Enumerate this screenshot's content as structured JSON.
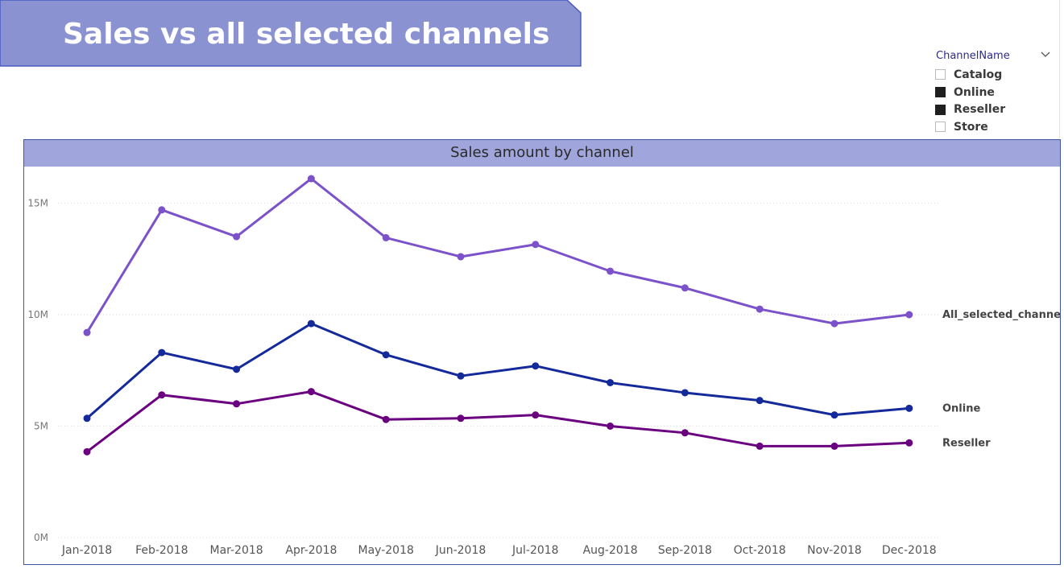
{
  "page": {
    "title": "Sales vs all selected channels"
  },
  "colors": {
    "banner_fill": "#8a92d2",
    "banner_border": "#4a5cc0",
    "chart_header": "#a0a5db",
    "chart_border": "#3b55a8"
  },
  "slicer": {
    "header": "ChannelName",
    "icon": "chevron-down-icon",
    "items": [
      {
        "label": "Catalog",
        "checked": false
      },
      {
        "label": "Online",
        "checked": true
      },
      {
        "label": "Reseller",
        "checked": true
      },
      {
        "label": "Store",
        "checked": false
      }
    ]
  },
  "chart_data": {
    "type": "line",
    "title": "Sales amount by channel",
    "xlabel": "",
    "ylabel": "",
    "x": [
      "Jan-2018",
      "Feb-2018",
      "Mar-2018",
      "Apr-2018",
      "May-2018",
      "Jun-2018",
      "Jul-2018",
      "Aug-2018",
      "Sep-2018",
      "Oct-2018",
      "Nov-2018",
      "Dec-2018"
    ],
    "ylim": [
      0,
      15000000
    ],
    "yticks": [
      0,
      5000000,
      10000000,
      15000000
    ],
    "ytick_labels": [
      "0M",
      "5M",
      "10M",
      "15M"
    ],
    "grid": true,
    "legend": "inline end labels",
    "series": [
      {
        "name": "All_selected_channels",
        "color": "#7b52c9",
        "values": [
          9200000,
          14700000,
          13500000,
          16100000,
          13450000,
          12600000,
          13150000,
          11950000,
          11200000,
          10250000,
          9600000,
          10000000
        ]
      },
      {
        "name": "Online",
        "color": "#14299a",
        "values": [
          5350000,
          8300000,
          7550000,
          9600000,
          8200000,
          7250000,
          7700000,
          6950000,
          6500000,
          6150000,
          5500000,
          5800000
        ]
      },
      {
        "name": "Reseller",
        "color": "#6a0080",
        "values": [
          3850000,
          6400000,
          6000000,
          6550000,
          5300000,
          5350000,
          5500000,
          5000000,
          4700000,
          4100000,
          4100000,
          4250000
        ]
      }
    ]
  }
}
